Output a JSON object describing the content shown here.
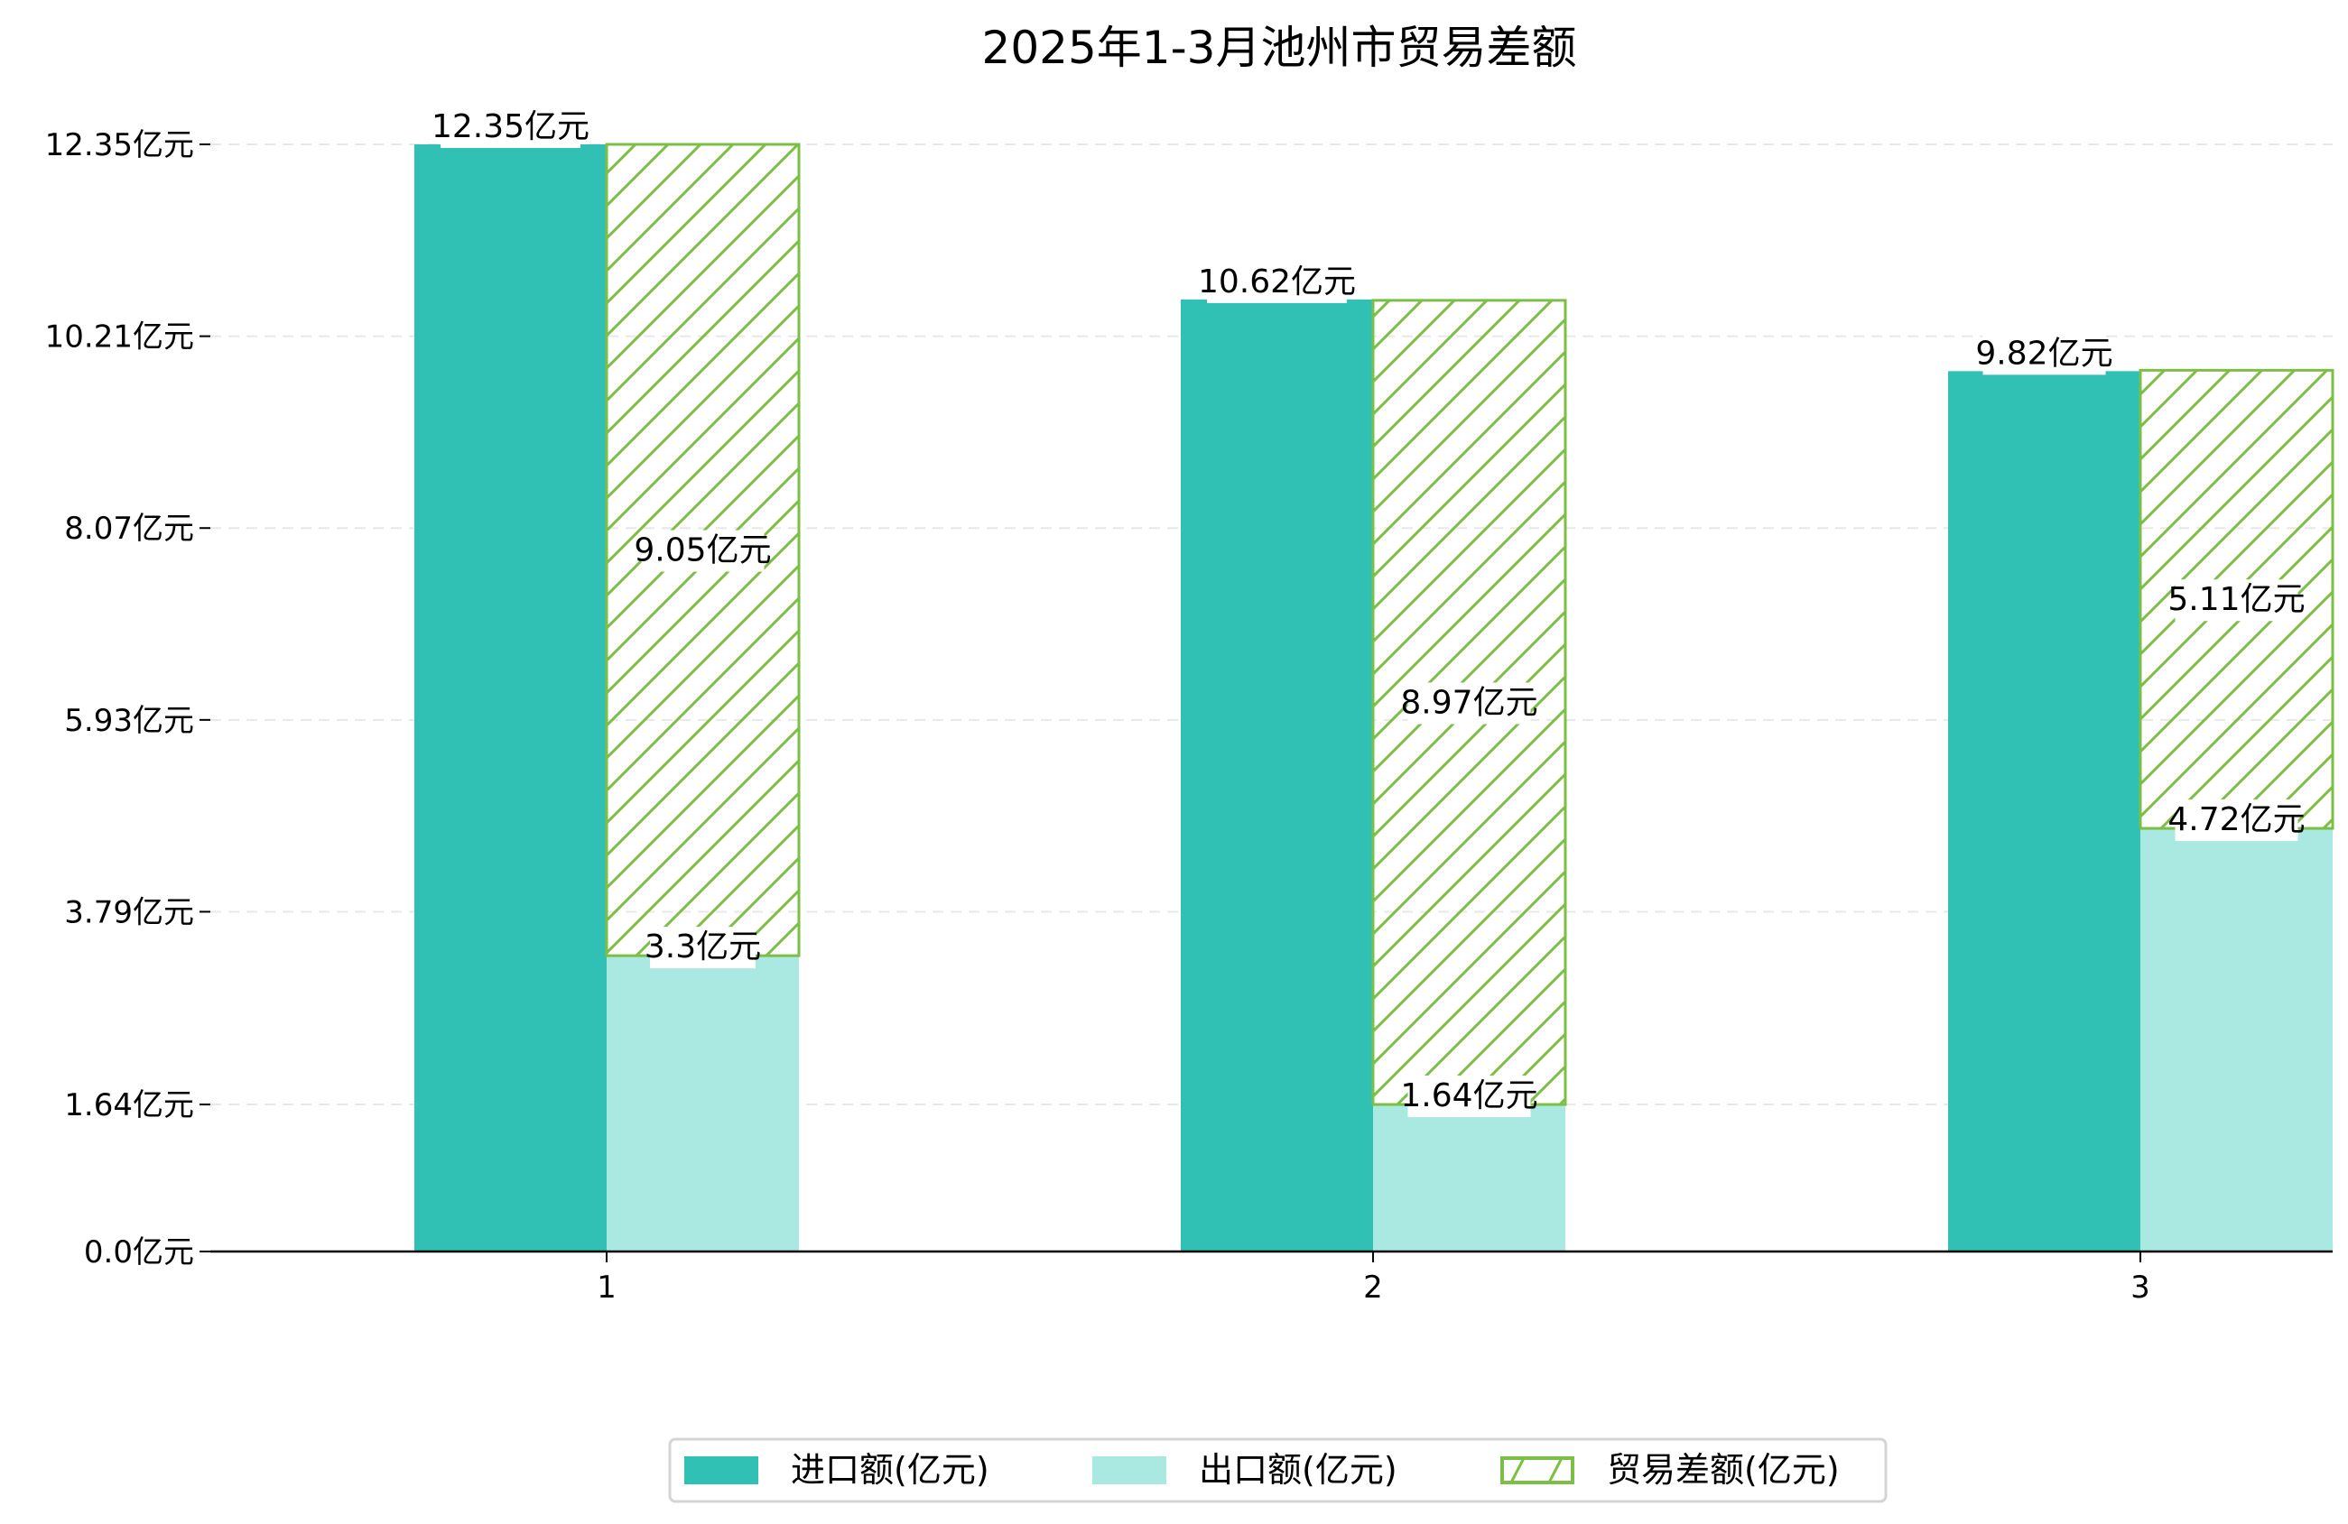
{
  "chart_data": {
    "type": "bar",
    "title": "2025年1-3月池州市贸易差额",
    "xlabel": "",
    "ylabel": "",
    "categories": [
      "1",
      "2",
      "3"
    ],
    "yticks": [
      0.0,
      1.64,
      3.79,
      5.93,
      8.07,
      10.21,
      12.35
    ],
    "ytick_labels": [
      "0.0亿元",
      "1.64亿元",
      "3.79亿元",
      "5.93亿元",
      "8.07亿元",
      "10.21亿元",
      "12.35亿元"
    ],
    "ylim": [
      0,
      12.35
    ],
    "grid": "horizontal dashed",
    "legend_position": "bottom-center",
    "series": [
      {
        "name": "进口额(亿元)",
        "values": [
          12.35,
          10.62,
          9.82
        ],
        "labels": [
          "12.35亿元",
          "10.62亿元",
          "9.82亿元"
        ],
        "color": "#30c0b4"
      },
      {
        "name": "出口额(亿元)",
        "values": [
          3.3,
          1.64,
          4.72
        ],
        "labels": [
          "3.3亿元",
          "1.64亿元",
          "4.72亿元"
        ],
        "color": "#aae8e2"
      },
      {
        "name": "贸易差额(亿元)",
        "values": [
          9.05,
          8.97,
          5.11
        ],
        "labels": [
          "9.05亿元",
          "8.97亿元",
          "5.11亿元"
        ],
        "color": "#7bbf44",
        "stacked_on": "出口额(亿元)",
        "hatch": "diagonal"
      }
    ]
  }
}
